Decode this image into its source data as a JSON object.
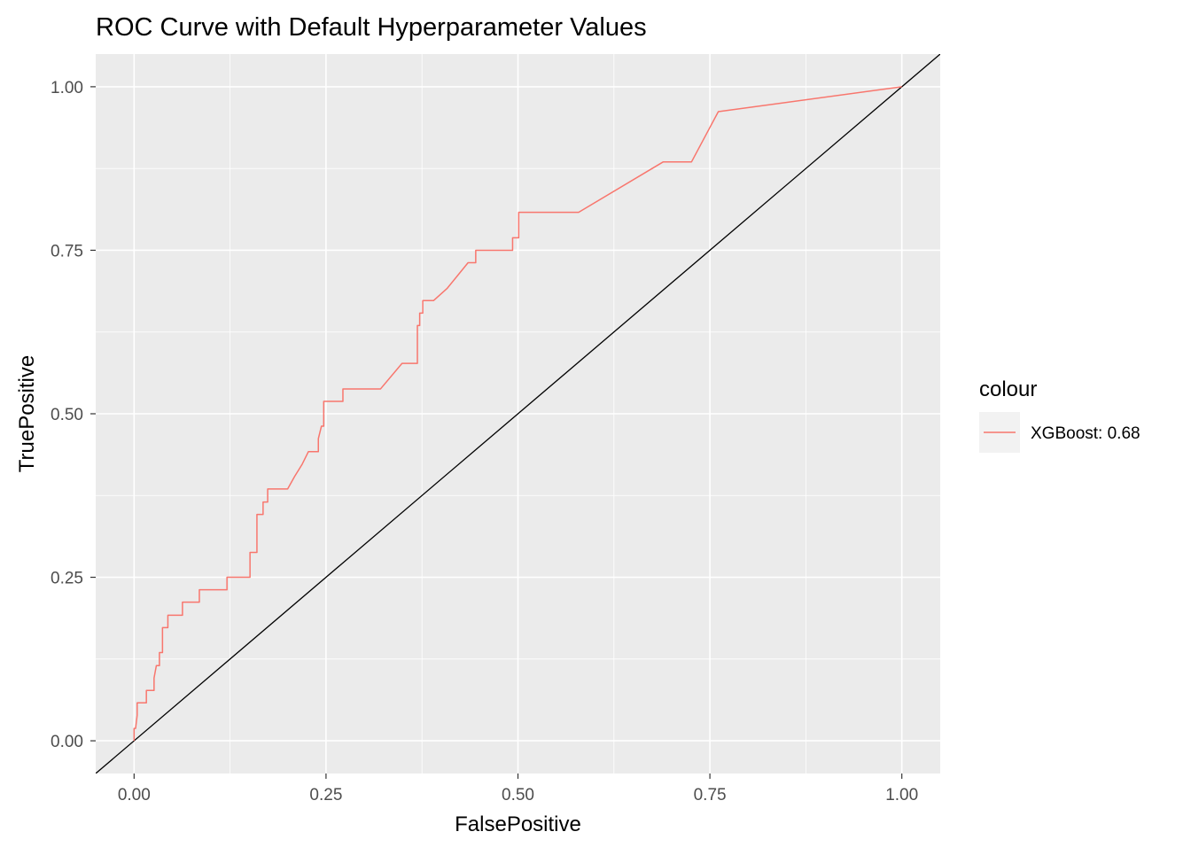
{
  "chart_data": {
    "type": "line",
    "title": "ROC Curve with Default Hyperparameter Values",
    "xlabel": "FalsePositive",
    "ylabel": "TruePositive",
    "xlim": [
      -0.05,
      1.05
    ],
    "ylim": [
      -0.05,
      1.05
    ],
    "x_ticks": [
      "0.00",
      "0.25",
      "0.50",
      "0.75",
      "1.00"
    ],
    "y_ticks": [
      "0.00",
      "0.25",
      "0.50",
      "0.75",
      "1.00"
    ],
    "grid": true,
    "legend": {
      "title": "colour",
      "position": "right"
    },
    "reference_line": {
      "intercept": 0,
      "slope": 1,
      "color": "#000000"
    },
    "series": [
      {
        "name": "XGBoost: 0.68",
        "color": "#F8766D",
        "x": [
          0,
          0,
          0.002,
          0.004,
          0.004,
          0.016,
          0.016,
          0.026,
          0.026,
          0.029,
          0.033,
          0.033,
          0.037,
          0.037,
          0.044,
          0.044,
          0.063,
          0.063,
          0.085,
          0.085,
          0.121,
          0.121,
          0.151,
          0.151,
          0.16,
          0.16,
          0.168,
          0.168,
          0.174,
          0.174,
          0.2,
          0.209,
          0.209,
          0.219,
          0.219,
          0.227,
          0.227,
          0.24,
          0.24,
          0.244,
          0.247,
          0.247,
          0.272,
          0.272,
          0.321,
          0.349,
          0.369,
          0.369,
          0.372,
          0.372,
          0.376,
          0.376,
          0.38,
          0.38,
          0.39,
          0.408,
          0.435,
          0.445,
          0.445,
          0.493,
          0.493,
          0.501,
          0.501,
          0.579,
          0.689,
          0.726,
          0.761,
          1.0
        ],
        "y": [
          0,
          0.019,
          0.019,
          0.039,
          0.058,
          0.058,
          0.077,
          0.077,
          0.096,
          0.115,
          0.115,
          0.135,
          0.135,
          0.173,
          0.173,
          0.192,
          0.192,
          0.212,
          0.212,
          0.231,
          0.231,
          0.25,
          0.25,
          0.288,
          0.288,
          0.346,
          0.346,
          0.365,
          0.365,
          0.385,
          0.385,
          0.404,
          0.404,
          0.423,
          0.423,
          0.442,
          0.442,
          0.442,
          0.462,
          0.481,
          0.481,
          0.519,
          0.519,
          0.538,
          0.538,
          0.577,
          0.577,
          0.635,
          0.635,
          0.654,
          0.654,
          0.673,
          0.673,
          0.673,
          0.673,
          0.692,
          0.731,
          0.731,
          0.75,
          0.75,
          0.769,
          0.769,
          0.808,
          0.808,
          0.885,
          0.885,
          0.962,
          1.0
        ]
      }
    ]
  }
}
